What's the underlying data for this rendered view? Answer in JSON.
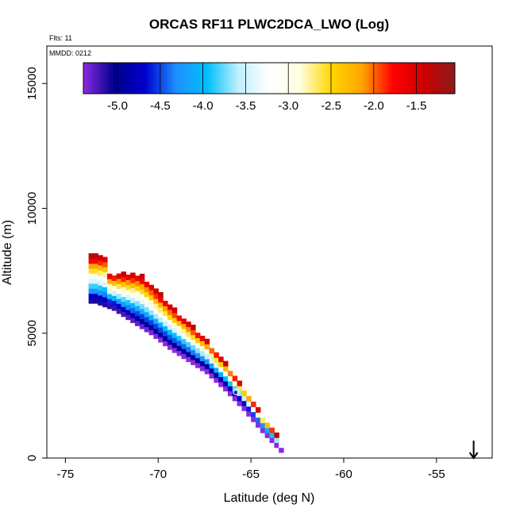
{
  "chart_data": {
    "type": "heatmap",
    "title": "ORCAS RF11 PLWC2DCA_LWO (Log)",
    "flights_label": "Flts: 11",
    "date_label": "MMDD: 0212",
    "xlabel": "Latitude (deg N)",
    "ylabel": "Altitude (m)",
    "xlim": [
      -76,
      -52
    ],
    "ylim": [
      0,
      16500
    ],
    "x_ticks": [
      -75,
      -70,
      -65,
      -60,
      -55
    ],
    "x_tick_labels": [
      "-75",
      "-70",
      "-65",
      "-60",
      "-55"
    ],
    "y_ticks": [
      0,
      5000,
      10000,
      15000
    ],
    "y_tick_labels": [
      "0",
      "5000",
      "10000",
      "15000"
    ],
    "colorbar": {
      "range": [
        -5.4,
        -1.05
      ],
      "ticks": [
        -5.0,
        -4.5,
        -4.0,
        -3.5,
        -3.0,
        -2.5,
        -2.0,
        -1.5
      ],
      "tick_labels": [
        "-5.0",
        "-4.5",
        "-4.0",
        "-3.5",
        "-3.0",
        "-2.5",
        "-2.0",
        "-1.5"
      ],
      "colors": [
        "#8a2be2",
        "#00008b",
        "#0000cd",
        "#1e90ff",
        "#00bfff",
        "#bfefff",
        "#ffffff",
        "#ffffe0",
        "#ffd700",
        "#ffa500",
        "#ff0000",
        "#cc0000",
        "#8b1a1a"
      ],
      "placement": "top-inside"
    },
    "grid": false,
    "band": {
      "lat_step": 0.25,
      "alt_step": 200,
      "centerline": [
        [
          -73.5,
          7500
        ],
        [
          -72.5,
          7100
        ],
        [
          -71.5,
          6500
        ],
        [
          -70.5,
          5900
        ],
        [
          -69.5,
          5200
        ],
        [
          -68.5,
          4600
        ],
        [
          -67.5,
          4000
        ],
        [
          -66.5,
          3200
        ],
        [
          -65.5,
          2300
        ],
        [
          -64.5,
          1300
        ],
        [
          -63.5,
          400
        ],
        [
          -63.3,
          100
        ]
      ],
      "halfwidth_top": 1300,
      "halfwidth_bottom": 150,
      "top_value": -1.3,
      "bottom_value": -5.1,
      "top_edge_alt_cap": 7300,
      "top_edge_cap_until_lat": -69.3
    },
    "markers": [
      {
        "lat": -69.8,
        "alt": 7050
      },
      {
        "lat": -65.8,
        "alt": 2650
      },
      {
        "lat": -72.9,
        "alt": 7000
      }
    ],
    "arrow": {
      "lat": -53.0,
      "alt_from": 700,
      "alt_to": 0
    }
  }
}
